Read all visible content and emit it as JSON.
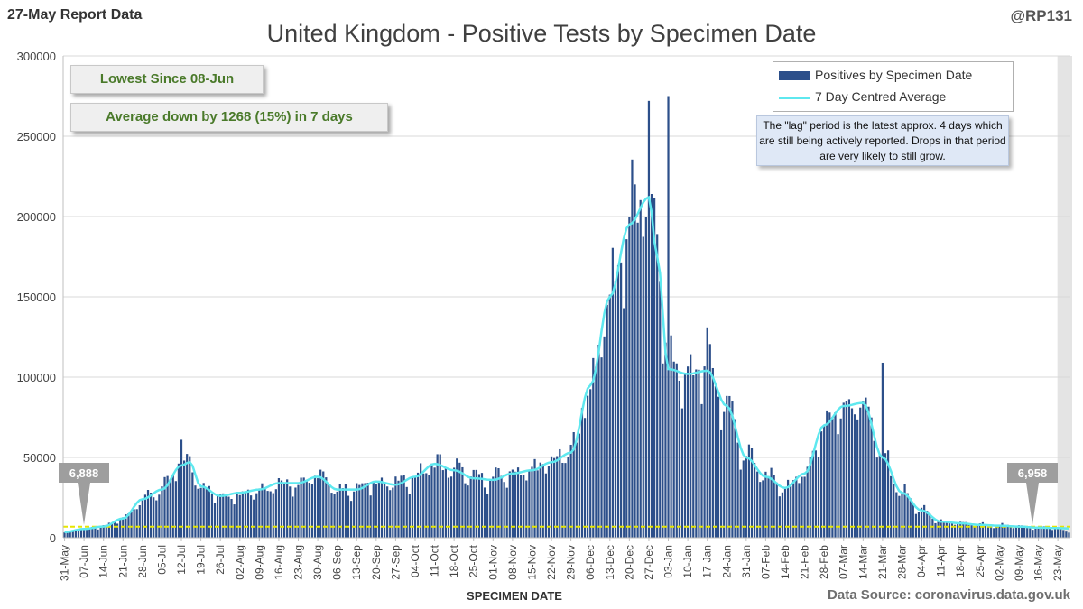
{
  "header": {
    "report_date": "27-May Report Data",
    "title": "United Kingdom - Positive Tests by Specimen Date",
    "handle": "@RP131"
  },
  "callouts": {
    "lowest": "Lowest Since 08-Jun",
    "average": "Average down by 1268 (15%) in 7 days"
  },
  "legend": {
    "bars": "Positives by Specimen Date",
    "line": "7 Day Centred Average"
  },
  "lag_note": "The \"lag\" period is the latest approx. 4 days which are still being actively reported. Drops in that period are very likely to still grow.",
  "markers": {
    "start_label": "6,888",
    "end_label": "6,958"
  },
  "footer": {
    "xlabel": "SPECIMEN DATE",
    "source": "Data Source: coronavirus.data.gov.uk"
  },
  "colors": {
    "bars": "#2c4f8a",
    "line": "#5ee8ef",
    "reference": "#e6e600",
    "callout_text": "#4a7a2a"
  },
  "chart_data": {
    "type": "bar",
    "title": "United Kingdom - Positive Tests by Specimen Date",
    "xlabel": "SPECIMEN DATE",
    "ylabel": "",
    "ylim": [
      0,
      300000
    ],
    "yticks": [
      0,
      50000,
      100000,
      150000,
      200000,
      250000,
      300000
    ],
    "x_start": "31-May",
    "days": 362,
    "lag_days": 4,
    "reference_level": 6888,
    "xticks": [
      "31-May",
      "07-Jun",
      "14-Jun",
      "21-Jun",
      "28-Jun",
      "05-Jul",
      "12-Jul",
      "19-Jul",
      "26-Jul",
      "02-Aug",
      "09-Aug",
      "16-Aug",
      "23-Aug",
      "30-Aug",
      "06-Sep",
      "13-Sep",
      "20-Sep",
      "27-Sep",
      "04-Oct",
      "11-Oct",
      "18-Oct",
      "25-Oct",
      "01-Nov",
      "08-Nov",
      "15-Nov",
      "22-Nov",
      "29-Nov",
      "06-Dec",
      "13-Dec",
      "20-Dec",
      "27-Dec",
      "03-Jan",
      "10-Jan",
      "17-Jan",
      "24-Jan",
      "31-Jan",
      "07-Feb",
      "14-Feb",
      "21-Feb",
      "28-Feb",
      "07-Mar",
      "14-Mar",
      "21-Mar",
      "28-Mar",
      "04-Apr",
      "11-Apr",
      "18-Apr",
      "25-Apr",
      "02-May",
      "09-May",
      "16-May",
      "23-May"
    ],
    "series": [
      {
        "name": "7 Day Centred Average",
        "anchor_day": [
          0,
          7,
          14,
          21,
          28,
          35,
          42,
          45,
          49,
          56,
          63,
          70,
          77,
          84,
          91,
          98,
          105,
          112,
          119,
          126,
          133,
          140,
          147,
          154,
          161,
          168,
          175,
          182,
          189,
          196,
          203,
          210,
          213,
          217,
          224,
          231,
          238,
          245,
          252,
          259,
          266,
          273,
          280,
          287,
          294,
          301,
          308,
          315,
          322,
          329,
          336,
          343,
          350,
          357,
          361
        ],
        "values": [
          3500,
          5500,
          7000,
          12000,
          24000,
          30000,
          45000,
          47000,
          32000,
          26000,
          28000,
          30000,
          34000,
          34000,
          38000,
          30000,
          30000,
          35000,
          33000,
          38000,
          46000,
          42000,
          37000,
          36000,
          40000,
          42000,
          47000,
          53000,
          95000,
          150000,
          195000,
          212000,
          175000,
          105000,
          102000,
          104000,
          82000,
          50000,
          38000,
          31000,
          40000,
          70000,
          82000,
          84000,
          50000,
          28000,
          17000,
          10000,
          9000,
          8000,
          7500,
          6958,
          6300,
          6000,
          5800
        ]
      },
      {
        "name": "Positives by Specimen Date",
        "peaks": [
          {
            "label": "12-Jul",
            "value": 61000
          },
          {
            "label": "27-Dec",
            "value": 272000
          },
          {
            "label": "03-Jan",
            "value": 275000
          },
          {
            "label": "17-Jan",
            "value": 131000
          },
          {
            "label": "21-Mar",
            "value": 109000
          }
        ]
      }
    ]
  }
}
